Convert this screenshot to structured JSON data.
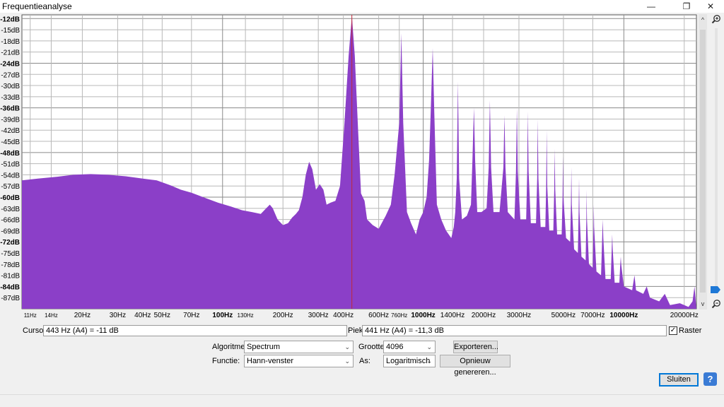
{
  "window": {
    "title": "Frequentieanalyse",
    "min_glyph": "—",
    "max_glyph": "❐",
    "close_glyph": "✕"
  },
  "chart_data": {
    "type": "area",
    "xscale": "log",
    "xlim": [
      10,
      23000
    ],
    "ylim": [
      -90,
      -11
    ],
    "grid": true,
    "x_ticks": [
      {
        "v": 11,
        "t": "11Hz",
        "bold": false
      },
      {
        "v": 14,
        "t": "14Hz",
        "bold": false
      },
      {
        "v": 20,
        "t": "20Hz",
        "bold": false
      },
      {
        "v": 30,
        "t": "30Hz",
        "bold": false
      },
      {
        "v": 40,
        "t": "40Hz",
        "bold": false
      },
      {
        "v": 50,
        "t": "50Hz",
        "bold": false
      },
      {
        "v": 70,
        "t": "70Hz",
        "bold": false
      },
      {
        "v": 100,
        "t": "100Hz",
        "bold": true
      },
      {
        "v": 130,
        "t": "130Hz",
        "bold": false
      },
      {
        "v": 200,
        "t": "200Hz",
        "bold": false
      },
      {
        "v": 300,
        "t": "300Hz",
        "bold": false
      },
      {
        "v": 400,
        "t": "400Hz",
        "bold": false
      },
      {
        "v": 600,
        "t": "600Hz",
        "bold": false
      },
      {
        "v": 760,
        "t": "760Hz",
        "bold": false
      },
      {
        "v": 1000,
        "t": "1000Hz",
        "bold": true
      },
      {
        "v": 1400,
        "t": "1400Hz",
        "bold": false
      },
      {
        "v": 2000,
        "t": "2000Hz",
        "bold": false
      },
      {
        "v": 3000,
        "t": "3000Hz",
        "bold": false
      },
      {
        "v": 5000,
        "t": "5000Hz",
        "bold": false
      },
      {
        "v": 7000,
        "t": "7000Hz",
        "bold": false
      },
      {
        "v": 10000,
        "t": "10000Hz",
        "bold": true
      },
      {
        "v": 20000,
        "t": "20000Hz",
        "bold": false
      }
    ],
    "y_ticks": [
      {
        "v": -12,
        "t": "-12dB",
        "bold": true
      },
      {
        "v": -15,
        "t": "-15dB",
        "bold": false
      },
      {
        "v": -18,
        "t": "-18dB",
        "bold": false
      },
      {
        "v": -21,
        "t": "-21dB",
        "bold": false
      },
      {
        "v": -24,
        "t": "-24dB",
        "bold": true
      },
      {
        "v": -27,
        "t": "-27dB",
        "bold": false
      },
      {
        "v": -30,
        "t": "-30dB",
        "bold": false
      },
      {
        "v": -33,
        "t": "-33dB",
        "bold": false
      },
      {
        "v": -36,
        "t": "-36dB",
        "bold": true
      },
      {
        "v": -39,
        "t": "-39dB",
        "bold": false
      },
      {
        "v": -42,
        "t": "-42dB",
        "bold": false
      },
      {
        "v": -45,
        "t": "-45dB",
        "bold": false
      },
      {
        "v": -48,
        "t": "-48dB",
        "bold": true
      },
      {
        "v": -51,
        "t": "-51dB",
        "bold": false
      },
      {
        "v": -54,
        "t": "-54dB",
        "bold": false
      },
      {
        "v": -57,
        "t": "-57dB",
        "bold": false
      },
      {
        "v": -60,
        "t": "-60dB",
        "bold": true
      },
      {
        "v": -63,
        "t": "-63dB",
        "bold": false
      },
      {
        "v": -66,
        "t": "-66dB",
        "bold": false
      },
      {
        "v": -69,
        "t": "-69dB",
        "bold": false
      },
      {
        "v": -72,
        "t": "-72dB",
        "bold": true
      },
      {
        "v": -75,
        "t": "-75dB",
        "bold": false
      },
      {
        "v": -78,
        "t": "-78dB",
        "bold": false
      },
      {
        "v": -81,
        "t": "-81dB",
        "bold": false
      },
      {
        "v": -84,
        "t": "-84dB",
        "bold": true
      },
      {
        "v": -87,
        "t": "-87dB",
        "bold": false
      }
    ],
    "fill_color": "#8b3fc8",
    "cursor_line": {
      "x": 441,
      "color": "#c0283a"
    },
    "spectrum": [
      [
        10,
        -55.5
      ],
      [
        12,
        -55
      ],
      [
        15,
        -54.5
      ],
      [
        18,
        -54
      ],
      [
        22,
        -53.8
      ],
      [
        27,
        -54
      ],
      [
        33,
        -54.4
      ],
      [
        40,
        -55
      ],
      [
        47,
        -55.5
      ],
      [
        55,
        -56.8
      ],
      [
        62,
        -58
      ],
      [
        70,
        -58.8
      ],
      [
        80,
        -60
      ],
      [
        95,
        -61.5
      ],
      [
        110,
        -62.5
      ],
      [
        125,
        -63.5
      ],
      [
        140,
        -64
      ],
      [
        155,
        -64.5
      ],
      [
        165,
        -63
      ],
      [
        172,
        -62
      ],
      [
        178,
        -63
      ],
      [
        188,
        -66
      ],
      [
        200,
        -67.5
      ],
      [
        212,
        -67
      ],
      [
        222,
        -65.5
      ],
      [
        232,
        -64.5
      ],
      [
        240,
        -63.5
      ],
      [
        250,
        -60
      ],
      [
        260,
        -54
      ],
      [
        270,
        -50.5
      ],
      [
        280,
        -52.5
      ],
      [
        292,
        -58
      ],
      [
        305,
        -56.5
      ],
      [
        318,
        -58
      ],
      [
        330,
        -62
      ],
      [
        345,
        -61.5
      ],
      [
        365,
        -61
      ],
      [
        385,
        -57
      ],
      [
        405,
        -40
      ],
      [
        425,
        -22
      ],
      [
        441,
        -11.3
      ],
      [
        456,
        -22
      ],
      [
        472,
        -40
      ],
      [
        490,
        -59
      ],
      [
        510,
        -61
      ],
      [
        525,
        -66
      ],
      [
        560,
        -67.5
      ],
      [
        600,
        -68.5
      ],
      [
        650,
        -65
      ],
      [
        690,
        -62
      ],
      [
        720,
        -54
      ],
      [
        760,
        -40
      ],
      [
        778,
        -16
      ],
      [
        795,
        -40
      ],
      [
        830,
        -64
      ],
      [
        870,
        -67
      ],
      [
        920,
        -70
      ],
      [
        960,
        -66
      ],
      [
        1000,
        -64
      ],
      [
        1040,
        -60
      ],
      [
        1070,
        -50
      ],
      [
        1090,
        -37
      ],
      [
        1115,
        -20
      ],
      [
        1135,
        -37
      ],
      [
        1170,
        -62
      ],
      [
        1230,
        -66
      ],
      [
        1300,
        -69
      ],
      [
        1380,
        -71
      ],
      [
        1420,
        -68
      ],
      [
        1445,
        -64
      ],
      [
        1470,
        -55
      ],
      [
        1490,
        -29
      ],
      [
        1510,
        -55
      ],
      [
        1560,
        -66
      ],
      [
        1650,
        -65
      ],
      [
        1730,
        -62
      ],
      [
        1760,
        -50
      ],
      [
        1790,
        -36
      ],
      [
        1815,
        -50
      ],
      [
        1860,
        -64
      ],
      [
        1950,
        -64
      ],
      [
        2070,
        -63
      ],
      [
        2120,
        -52
      ],
      [
        2150,
        -34
      ],
      [
        2180,
        -52
      ],
      [
        2240,
        -64
      ],
      [
        2400,
        -64
      ],
      [
        2510,
        -52
      ],
      [
        2540,
        -38
      ],
      [
        2570,
        -52
      ],
      [
        2640,
        -64
      ],
      [
        2850,
        -66
      ],
      [
        2900,
        -53
      ],
      [
        2930,
        -36
      ],
      [
        2960,
        -53
      ],
      [
        3050,
        -66
      ],
      [
        3260,
        -66
      ],
      [
        3300,
        -53
      ],
      [
        3320,
        -37
      ],
      [
        3350,
        -53
      ],
      [
        3440,
        -67
      ],
      [
        3650,
        -67
      ],
      [
        3700,
        -55
      ],
      [
        3720,
        -39
      ],
      [
        3750,
        -55
      ],
      [
        3850,
        -68
      ],
      [
        4060,
        -68
      ],
      [
        4100,
        -57
      ],
      [
        4125,
        -42
      ],
      [
        4150,
        -57
      ],
      [
        4250,
        -69
      ],
      [
        4450,
        -69
      ],
      [
        4500,
        -58
      ],
      [
        4520,
        -47
      ],
      [
        4550,
        -58
      ],
      [
        4650,
        -70
      ],
      [
        4900,
        -70
      ],
      [
        4950,
        -60
      ],
      [
        4970,
        -49
      ],
      [
        5000,
        -60
      ],
      [
        5150,
        -71
      ],
      [
        5400,
        -72
      ],
      [
        5450,
        -62
      ],
      [
        5475,
        -52
      ],
      [
        5500,
        -62
      ],
      [
        5650,
        -74
      ],
      [
        5900,
        -75
      ],
      [
        5950,
        -64
      ],
      [
        5980,
        -55
      ],
      [
        6010,
        -64
      ],
      [
        6150,
        -76
      ],
      [
        6450,
        -77
      ],
      [
        6500,
        -66
      ],
      [
        6520,
        -58
      ],
      [
        6550,
        -66
      ],
      [
        6700,
        -78
      ],
      [
        7000,
        -79
      ],
      [
        7050,
        -68
      ],
      [
        7080,
        -62
      ],
      [
        7110,
        -68
      ],
      [
        7300,
        -80
      ],
      [
        7700,
        -81
      ],
      [
        7800,
        -71
      ],
      [
        7850,
        -66
      ],
      [
        7900,
        -71
      ],
      [
        8100,
        -82
      ],
      [
        8600,
        -82
      ],
      [
        8700,
        -74
      ],
      [
        8750,
        -70
      ],
      [
        8800,
        -74
      ],
      [
        9000,
        -83
      ],
      [
        9500,
        -83
      ],
      [
        9600,
        -78
      ],
      [
        9650,
        -76
      ],
      [
        9700,
        -78
      ],
      [
        10000,
        -84
      ],
      [
        11000,
        -85
      ],
      [
        11300,
        -81
      ],
      [
        11500,
        -85
      ],
      [
        12500,
        -86
      ],
      [
        13000,
        -84
      ],
      [
        13500,
        -87
      ],
      [
        15000,
        -88
      ],
      [
        16000,
        -86
      ],
      [
        17000,
        -89
      ],
      [
        19000,
        -88.5
      ],
      [
        21000,
        -89.5
      ],
      [
        22000,
        -88
      ],
      [
        22500,
        -84
      ],
      [
        23000,
        -90
      ]
    ]
  },
  "controls": {
    "cursor_label": "Cursor:",
    "cursor_value": "443 Hz (A4) = -11 dB",
    "peak_label": "Piek:",
    "peak_value": "441 Hz (A4) = -11,3 dB",
    "grid_label": "Raster",
    "grid_checked": "✓",
    "algorithm_label": "Algoritme:",
    "algorithm_value": "Spectrum",
    "size_label": "Grootte:",
    "size_value": "4096",
    "function_label": "Functie:",
    "function_value": "Hann-venster",
    "axis_label": "As:",
    "axis_value": "Logaritmisch",
    "export_label": "Exporteren...",
    "regenerate_label": "Opnieuw genereren...",
    "close_label": "Sluiten",
    "help_glyph": "?",
    "chevron": "⌄",
    "scroll_up": "^",
    "scroll_down": "v"
  }
}
